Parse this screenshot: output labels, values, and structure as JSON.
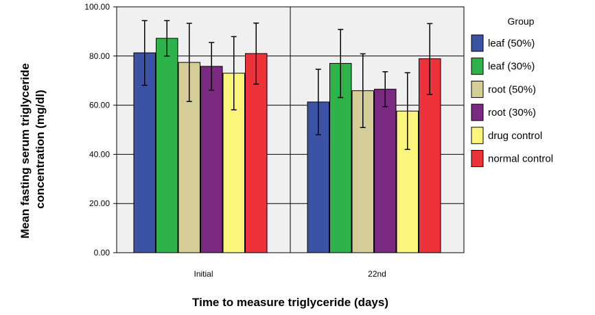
{
  "chart_data": {
    "type": "bar",
    "xlabel": "Time to measure triglyceride (days)",
    "ylabel_lines": [
      "Mean fasting serum triglyceride",
      "concentration (mg/dl)"
    ],
    "ylim": [
      0,
      100
    ],
    "yticks": [
      "0.00",
      "20.00",
      "40.00",
      "60.00",
      "80.00",
      "100.00"
    ],
    "grid": true,
    "legend_position": "right",
    "legend_title": "Group",
    "categories": [
      "Initial",
      "22nd"
    ],
    "series": [
      {
        "name": "leaf (50%)",
        "color": "#3a53a4",
        "values": [
          81.3,
          61.3
        ],
        "error_low": [
          68.1,
          48.0
        ],
        "error_high": [
          94.4,
          74.6
        ]
      },
      {
        "name": "leaf (30%)",
        "color": "#2db34a",
        "values": [
          87.2,
          77.0
        ],
        "error_low": [
          80.0,
          63.1
        ],
        "error_high": [
          94.4,
          90.8
        ]
      },
      {
        "name": "root (50%)",
        "color": "#d4cd97",
        "values": [
          77.4,
          65.9
        ],
        "error_low": [
          61.5,
          50.9
        ],
        "error_high": [
          93.3,
          80.9
        ]
      },
      {
        "name": "root (30%)",
        "color": "#7b2a82",
        "values": [
          75.8,
          66.5
        ],
        "error_low": [
          66.1,
          59.4
        ],
        "error_high": [
          85.5,
          73.6
        ]
      },
      {
        "name": "drug control",
        "color": "#fcf57c",
        "values": [
          73.0,
          57.6
        ],
        "error_low": [
          58.1,
          42.0
        ],
        "error_high": [
          87.9,
          73.2
        ]
      },
      {
        "name": "normal control",
        "color": "#ee3239",
        "values": [
          81.0,
          78.9
        ],
        "error_low": [
          68.6,
          64.4
        ],
        "error_high": [
          93.4,
          93.2
        ]
      }
    ]
  }
}
